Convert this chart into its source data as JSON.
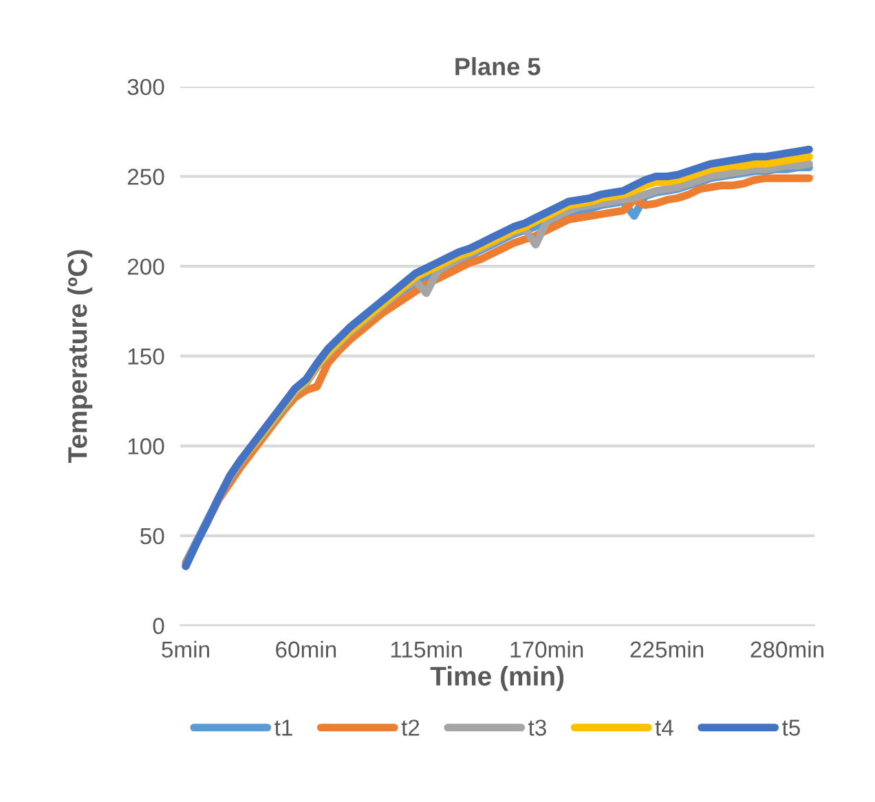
{
  "chart_data": {
    "type": "line",
    "title": "Plane 5",
    "xlabel": "Time (min)",
    "ylabel": "Temperature (ºC)",
    "categories": [
      "5min",
      null,
      null,
      null,
      null,
      null,
      null,
      null,
      null,
      null,
      null,
      "60min",
      null,
      null,
      null,
      null,
      null,
      null,
      null,
      null,
      null,
      null,
      "115min",
      null,
      null,
      null,
      null,
      null,
      null,
      null,
      null,
      null,
      null,
      "170min",
      null,
      null,
      null,
      null,
      null,
      null,
      null,
      null,
      null,
      null,
      "225min",
      null,
      null,
      null,
      null,
      null,
      null,
      null,
      null,
      null,
      null,
      "280min",
      null,
      null
    ],
    "series": [
      {
        "name": "t1",
        "color": "#5b9bd5",
        "values": [
          35,
          47,
          59,
          71,
          82,
          91,
          99,
          106,
          114,
          122,
          130,
          135,
          144,
          151,
          157,
          163,
          168,
          173,
          178,
          183,
          187,
          191,
          194,
          197,
          200,
          203,
          206,
          209,
          212,
          215,
          218,
          220,
          222,
          224,
          227,
          230,
          231,
          232,
          234,
          235,
          236,
          228,
          239,
          241,
          242,
          243,
          245,
          247,
          249,
          250,
          251,
          252,
          253,
          253,
          254,
          254,
          255,
          255
        ]
      },
      {
        "name": "t2",
        "color": "#ed7d31",
        "values": [
          34,
          46,
          58,
          70,
          79,
          88,
          96,
          104,
          112,
          120,
          127,
          131,
          133,
          146,
          153,
          159,
          164,
          169,
          174,
          178,
          182,
          186,
          190,
          193,
          196,
          199,
          202,
          204,
          207,
          210,
          213,
          215,
          217,
          220,
          223,
          226,
          227,
          228,
          229,
          230,
          231,
          237,
          234,
          235,
          237,
          238,
          240,
          243,
          244,
          245,
          245,
          246,
          248,
          249,
          249,
          249,
          249,
          249
        ]
      },
      {
        "name": "t3",
        "color": "#a5a5a5",
        "values": [
          33,
          46,
          58,
          71,
          82,
          91,
          99,
          106,
          114,
          122,
          130,
          135,
          144,
          151,
          157,
          163,
          168,
          173,
          178,
          183,
          188,
          192,
          185,
          197,
          201,
          204,
          207,
          210,
          213,
          216,
          219,
          221,
          212,
          225,
          228,
          231,
          233,
          234,
          235,
          236,
          237,
          238,
          240,
          242,
          243,
          244,
          246,
          248,
          250,
          251,
          252,
          253,
          254,
          254,
          255,
          256,
          256,
          257
        ]
      },
      {
        "name": "t4",
        "color": "#ffc000",
        "values": [
          null,
          null,
          null,
          null,
          83,
          92,
          99,
          107,
          115,
          123,
          131,
          136,
          145,
          152,
          158,
          164,
          169,
          174,
          179,
          184,
          189,
          194,
          197,
          200,
          203,
          206,
          208,
          211,
          214,
          217,
          220,
          222,
          225,
          228,
          231,
          234,
          235,
          236,
          238,
          239,
          240,
          242,
          245,
          247,
          247,
          248,
          250,
          252,
          254,
          255,
          256,
          256,
          257,
          257,
          258,
          259,
          260,
          261
        ]
      },
      {
        "name": "t5",
        "color": "#4472c4",
        "values": [
          33,
          46,
          58,
          71,
          83,
          92,
          100,
          108,
          116,
          124,
          132,
          137,
          146,
          154,
          160,
          166,
          171,
          176,
          181,
          186,
          191,
          196,
          199,
          202,
          205,
          208,
          210,
          213,
          216,
          219,
          222,
          224,
          227,
          230,
          233,
          236,
          237,
          238,
          240,
          241,
          242,
          245,
          248,
          250,
          250,
          251,
          253,
          255,
          257,
          258,
          259,
          260,
          261,
          261,
          262,
          263,
          264,
          265
        ]
      }
    ],
    "ylim": [
      0,
      300
    ],
    "yticks": [
      0,
      50,
      100,
      150,
      200,
      250,
      300
    ],
    "grid": "y",
    "legend": "bottom",
    "marker": "none",
    "line_style": "solid"
  }
}
